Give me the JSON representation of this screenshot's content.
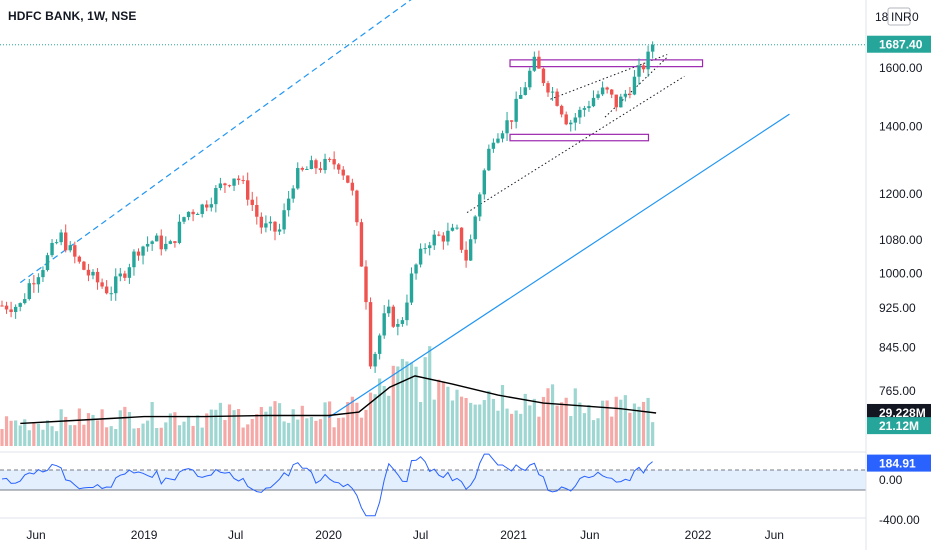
{
  "header": {
    "title": "HDFC BANK, 1W, NSE"
  },
  "price_axis": {
    "currency_label": "INR",
    "top_partial": "18",
    "top_tail": "0",
    "ticks": [
      "1600.00",
      "1400.00",
      "1200.00",
      "1080.00",
      "1000.00",
      "925.00",
      "845.00",
      "765.00"
    ],
    "last_price_badge": "1687.40",
    "volume_ma_badge": "29.228M",
    "volume_badge": "21.12M"
  },
  "cci_axis": {
    "ticks": [
      "0.00",
      "-400.00"
    ],
    "value_badge": "184.91"
  },
  "time_axis": {
    "labels": [
      "Jun",
      "2019",
      "Jul",
      "2020",
      "Jul",
      "2021",
      "Jun",
      "2022",
      "Jun"
    ]
  },
  "colors": {
    "up": "#26a69a",
    "down": "#ef5350",
    "volume_up": "#9ed6d1",
    "volume_down": "#f5a9a7",
    "trendline": "#2196f3",
    "box": "#9c27b0",
    "last_price": "#26a69a",
    "cci": "#2962ff",
    "cci_band": "#e3effd",
    "ma": "#000000"
  },
  "chart_data": {
    "type": "candlestick",
    "title": "HDFC BANK, 1W, NSE",
    "y_scale": "log",
    "ylim": [
      720,
      1850
    ],
    "last_price": 1687.4,
    "price_path": [
      [
        "2018-05-01",
        930
      ],
      [
        "2018-05-20",
        980
      ],
      [
        "2018-06-15",
        1020
      ],
      [
        "2018-07-20",
        1090
      ],
      [
        "2018-08-20",
        1030
      ],
      [
        "2018-09-20",
        990
      ],
      [
        "2018-10-25",
        960
      ],
      [
        "2018-11-20",
        1000
      ],
      [
        "2018-12-20",
        1060
      ],
      [
        "2019-01-20",
        1080
      ],
      [
        "2019-02-20",
        1060
      ],
      [
        "2019-03-25",
        1150
      ],
      [
        "2019-04-25",
        1165
      ],
      [
        "2019-06-01",
        1220
      ],
      [
        "2019-07-01",
        1255
      ],
      [
        "2019-07-25",
        1200
      ],
      [
        "2019-08-20",
        1115
      ],
      [
        "2019-09-25",
        1100
      ],
      [
        "2019-10-25",
        1245
      ],
      [
        "2019-11-25",
        1275
      ],
      [
        "2019-12-20",
        1280
      ],
      [
        "2020-01-20",
        1290
      ],
      [
        "2020-02-15",
        1220
      ],
      [
        "2020-03-15",
        950
      ],
      [
        "2020-03-25",
        810
      ],
      [
        "2020-04-25",
        920
      ],
      [
        "2020-05-20",
        880
      ],
      [
        "2020-06-15",
        1000
      ],
      [
        "2020-07-15",
        1080
      ],
      [
        "2020-08-15",
        1090
      ],
      [
        "2020-09-10",
        1100
      ],
      [
        "2020-10-01",
        1030
      ],
      [
        "2020-10-25",
        1200
      ],
      [
        "2020-11-20",
        1370
      ],
      [
        "2020-12-25",
        1420
      ],
      [
        "2021-01-15",
        1500
      ],
      [
        "2021-02-10",
        1620
      ],
      [
        "2021-03-01",
        1560
      ],
      [
        "2021-03-25",
        1500
      ],
      [
        "2021-04-20",
        1410
      ],
      [
        "2021-05-15",
        1450
      ],
      [
        "2021-06-10",
        1500
      ],
      [
        "2021-07-01",
        1520
      ],
      [
        "2021-07-25",
        1470
      ],
      [
        "2021-08-15",
        1520
      ],
      [
        "2021-09-05",
        1580
      ],
      [
        "2021-09-25",
        1640
      ],
      [
        "2021-10-10",
        1687.4
      ]
    ],
    "volume_ma_path": [
      [
        "2018-05-01",
        20
      ],
      [
        "2018-09-01",
        23
      ],
      [
        "2019-01-01",
        26
      ],
      [
        "2019-05-01",
        26
      ],
      [
        "2019-09-01",
        27
      ],
      [
        "2020-01-01",
        27
      ],
      [
        "2020-03-01",
        30
      ],
      [
        "2020-05-01",
        52
      ],
      [
        "2020-06-20",
        62
      ],
      [
        "2020-09-01",
        55
      ],
      [
        "2020-12-01",
        45
      ],
      [
        "2021-03-01",
        38
      ],
      [
        "2021-06-01",
        35
      ],
      [
        "2021-08-01",
        33
      ],
      [
        "2021-10-10",
        29.228
      ]
    ],
    "volume_last": 21.12,
    "cci_last": 184.91,
    "cci_levels": [
      100,
      -100
    ],
    "cci_ylim": [
      -400,
      300
    ],
    "box_upper": {
      "from": "2020-12-25",
      "to": "2022-01-10",
      "top": 1630,
      "bottom": 1605
    },
    "box_lower": {
      "from": "2020-12-25",
      "to": "2021-09-25",
      "top": 1375,
      "bottom": 1355
    },
    "trend_lines": [
      {
        "name": "upper-dashed",
        "from": [
          "2018-05-01",
          980
        ],
        "to": [
          "2020-07-01",
          1900
        ],
        "dashed": true
      },
      {
        "name": "lower-solid",
        "from": [
          "2020-01-01",
          720
        ],
        "to": [
          "2022-07-01",
          1440
        ],
        "dashed": false
      },
      {
        "name": "dotted-long",
        "from": [
          "2020-10-01",
          1150
        ],
        "to": [
          "2021-12-05",
          1570
        ],
        "dotted": true
      },
      {
        "name": "dotted-mid",
        "from": [
          "2021-03-15",
          1490
        ],
        "to": [
          "2021-11-01",
          1650
        ],
        "dotted": true
      },
      {
        "name": "dotted-short",
        "from": [
          "2021-07-01",
          1430
        ],
        "to": [
          "2021-11-01",
          1640
        ],
        "dotted": true
      }
    ]
  }
}
